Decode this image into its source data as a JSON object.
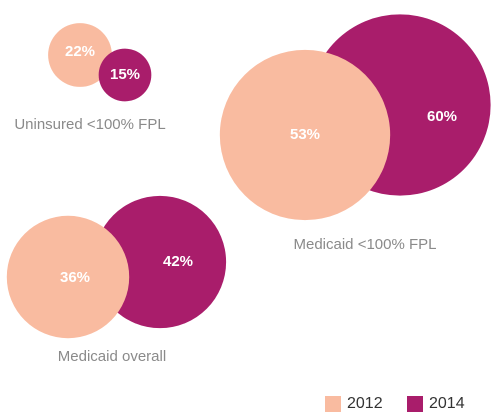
{
  "chart_data": {
    "type": "bubble",
    "categories": [
      "Uninsured <100% FPL",
      "Medicaid <100% FPL",
      "Medicaid overall"
    ],
    "series": [
      {
        "name": "2012",
        "color": "#f9bba0",
        "values": [
          22,
          53,
          36
        ],
        "value_labels": [
          "22%",
          "53%",
          "36%"
        ]
      },
      {
        "name": "2014",
        "color": "#a91d6b",
        "values": [
          15,
          60,
          42
        ],
        "value_labels": [
          "15%",
          "60%",
          "42%"
        ]
      }
    ],
    "legend": "bottom-right"
  }
}
